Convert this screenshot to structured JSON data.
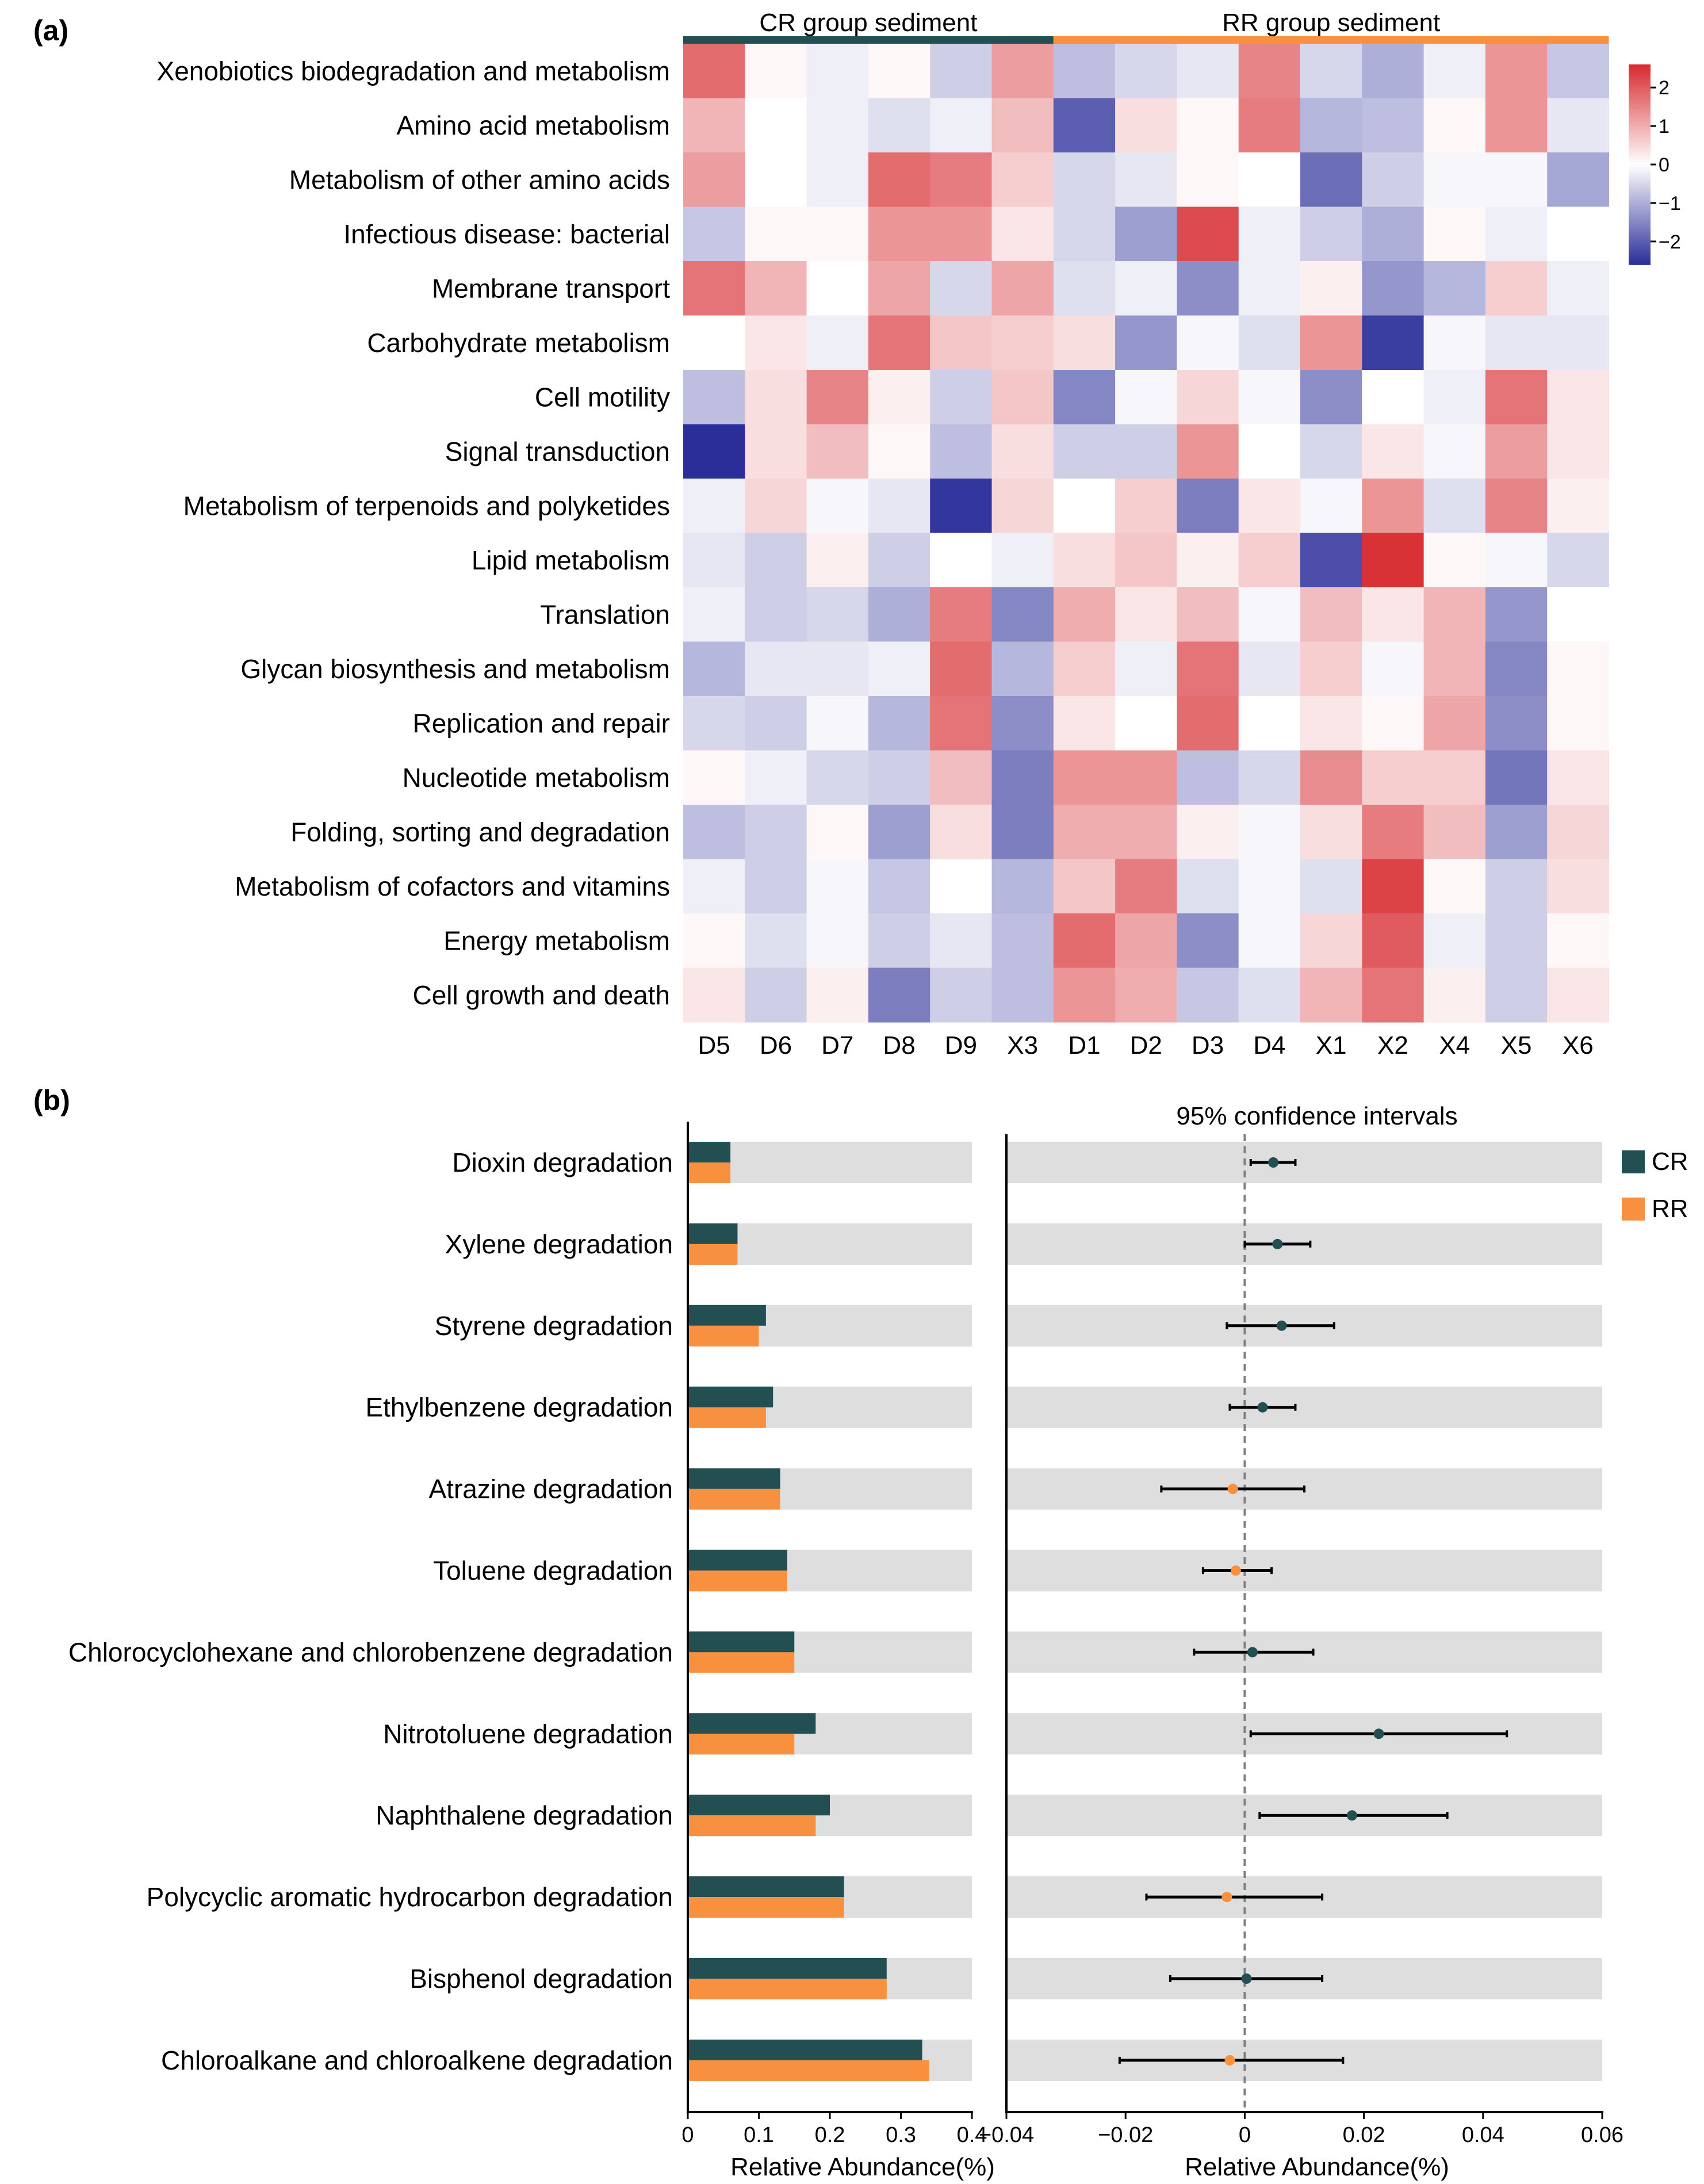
{
  "chart_data": [
    {
      "panel": "(a)",
      "type": "heatmap",
      "group_labels": [
        "CR group sediment",
        "RR group sediment"
      ],
      "group_colors": [
        "#234e52",
        "#f7913f"
      ],
      "group_column_counts": [
        6,
        9
      ],
      "columns": [
        "D5",
        "D6",
        "D7",
        "D8",
        "D9",
        "X3",
        "D1",
        "D2",
        "D3",
        "D4",
        "X1",
        "X2",
        "X4",
        "X5",
        "X6"
      ],
      "rows": [
        "Xenobiotics biodegradation and metabolism",
        "Amino acid metabolism",
        "Metabolism of other amino acids",
        "Infectious disease: bacterial",
        "Membrane transport",
        "Carbohydrate metabolism",
        "Cell motility",
        "Signal transduction",
        "Metabolism of terpenoids and polyketides",
        "Lipid metabolism",
        "Translation",
        "Glycan biosynthesis and metabolism",
        "Replication and repair",
        "Nucleotide metabolism",
        "Folding, sorting and degradation",
        "Metabolism of cofactors and vitamins",
        "Energy metabolism",
        "Cell growth and death"
      ],
      "values": [
        [
          1.8,
          0.1,
          -0.2,
          0.1,
          -0.6,
          1.2,
          -0.8,
          -0.5,
          -0.3,
          1.5,
          -0.5,
          -1.0,
          -0.2,
          1.3,
          -0.7
        ],
        [
          0.9,
          0.0,
          -0.2,
          -0.4,
          -0.2,
          0.8,
          -2.0,
          0.4,
          0.1,
          1.6,
          -0.9,
          -0.8,
          0.1,
          1.3,
          -0.3
        ],
        [
          1.2,
          0.0,
          -0.2,
          1.8,
          1.6,
          0.6,
          -0.5,
          -0.3,
          0.1,
          0.0,
          -1.8,
          -0.6,
          -0.1,
          -0.1,
          -1.1
        ],
        [
          -0.7,
          0.1,
          0.1,
          1.3,
          1.3,
          0.3,
          -0.5,
          -1.2,
          2.2,
          -0.2,
          -0.6,
          -1.0,
          0.1,
          -0.2,
          0.0
        ],
        [
          1.7,
          0.9,
          0.0,
          1.1,
          -0.5,
          1.1,
          -0.4,
          -0.2,
          -1.4,
          -0.2,
          0.2,
          -1.3,
          -0.9,
          0.6,
          -0.2
        ],
        [
          0.0,
          0.3,
          -0.2,
          1.7,
          0.7,
          0.6,
          0.4,
          -1.3,
          -0.1,
          -0.4,
          1.3,
          -2.4,
          -0.1,
          -0.3,
          -0.3
        ],
        [
          -0.8,
          0.4,
          1.5,
          0.2,
          -0.6,
          0.7,
          -1.5,
          -0.1,
          0.5,
          -0.1,
          -1.4,
          0.0,
          -0.2,
          1.7,
          0.3
        ],
        [
          -2.6,
          0.4,
          0.8,
          0.1,
          -0.8,
          0.4,
          -0.6,
          -0.6,
          1.3,
          0.0,
          -0.5,
          0.3,
          -0.1,
          1.2,
          0.3
        ],
        [
          -0.2,
          0.5,
          -0.1,
          -0.3,
          -2.5,
          0.5,
          0.0,
          0.6,
          -1.6,
          0.3,
          -0.1,
          1.3,
          -0.4,
          1.5,
          0.2
        ],
        [
          -0.3,
          -0.6,
          0.2,
          -0.6,
          0.0,
          -0.2,
          0.4,
          0.7,
          0.2,
          0.6,
          -2.2,
          2.5,
          0.1,
          -0.1,
          -0.5
        ],
        [
          -0.2,
          -0.6,
          -0.5,
          -1.0,
          1.6,
          -1.5,
          1.0,
          0.3,
          0.8,
          -0.1,
          0.8,
          0.3,
          0.9,
          -1.3,
          0.0
        ],
        [
          -0.9,
          -0.3,
          -0.3,
          -0.2,
          1.8,
          -0.9,
          0.6,
          -0.2,
          1.7,
          -0.3,
          0.6,
          -0.1,
          0.9,
          -1.5,
          0.1
        ],
        [
          -0.5,
          -0.6,
          -0.1,
          -0.9,
          1.7,
          -1.4,
          0.3,
          0.0,
          1.8,
          0.0,
          0.3,
          0.1,
          1.1,
          -1.4,
          0.1
        ],
        [
          0.1,
          -0.2,
          -0.5,
          -0.6,
          0.8,
          -1.6,
          1.3,
          1.3,
          -0.8,
          -0.5,
          1.4,
          0.6,
          0.6,
          -1.7,
          0.3
        ],
        [
          -0.8,
          -0.6,
          0.1,
          -1.2,
          0.4,
          -1.6,
          1.0,
          1.0,
          0.2,
          -0.1,
          0.4,
          1.6,
          0.8,
          -1.2,
          0.5
        ],
        [
          -0.2,
          -0.6,
          -0.1,
          -0.7,
          0.0,
          -0.9,
          0.7,
          1.6,
          -0.4,
          -0.1,
          -0.4,
          2.3,
          0.1,
          -0.6,
          0.4
        ],
        [
          0.1,
          -0.4,
          -0.1,
          -0.6,
          -0.3,
          -0.8,
          1.8,
          1.1,
          -1.4,
          -0.1,
          0.5,
          2.0,
          -0.2,
          -0.6,
          0.1
        ],
        [
          0.3,
          -0.6,
          0.2,
          -1.6,
          -0.6,
          -0.8,
          1.3,
          1.0,
          -0.7,
          -0.4,
          0.9,
          1.7,
          0.2,
          -0.6,
          0.3
        ]
      ],
      "colorbar": {
        "min": -2.6,
        "max": 2.6,
        "ticks": [
          2,
          1,
          0,
          -1,
          -2
        ],
        "tick_labels": [
          "2",
          "1",
          "0",
          "−1",
          "−2"
        ],
        "colors": [
          "#2b2e99",
          "#ffffff",
          "#d62a2f"
        ]
      }
    },
    {
      "panel": "(b)",
      "type": "bar",
      "orientation": "horizontal",
      "categories": [
        "Dioxin degradation",
        "Xylene degradation",
        "Styrene degradation",
        "Ethylbenzene degradation",
        "Atrazine degradation",
        "Toluene degradation",
        "Chlorocyclohexane and chlorobenzene degradation",
        "Nitrotoluene degradation",
        "Naphthalene degradation",
        "Polycyclic aromatic hydrocarbon degradation",
        "Bisphenol degradation",
        "Chloroalkane and chloroalkene degradation"
      ],
      "series": [
        {
          "name": "CR",
          "color": "#234e52",
          "values": [
            0.06,
            0.07,
            0.11,
            0.12,
            0.13,
            0.14,
            0.15,
            0.18,
            0.2,
            0.22,
            0.28,
            0.33
          ]
        },
        {
          "name": "RR",
          "color": "#f7913f",
          "values": [
            0.06,
            0.07,
            0.1,
            0.11,
            0.13,
            0.14,
            0.15,
            0.15,
            0.18,
            0.22,
            0.28,
            0.34
          ]
        }
      ],
      "xlim": [
        0,
        0.4
      ],
      "xticks": [
        0,
        0.1,
        0.2,
        0.3,
        0.4
      ],
      "xtick_labels": [
        "0",
        "0.1",
        "0.2",
        "0.3",
        "0.4"
      ],
      "xlabel": "Relative Abundance(%)"
    },
    {
      "panel": "(b)",
      "type": "scatter",
      "subtype": "confidence-interval",
      "title": "95% confidence intervals",
      "categories": [
        "Dioxin degradation",
        "Xylene degradation",
        "Styrene degradation",
        "Ethylbenzene degradation",
        "Atrazine degradation",
        "Toluene degradation",
        "Chlorocyclohexane and chlorobenzene degradation",
        "Nitrotoluene degradation",
        "Naphthalene degradation",
        "Polycyclic aromatic hydrocarbon degradation",
        "Bisphenol degradation",
        "Chloroalkane and chloroalkene degradation"
      ],
      "estimates": [
        0.0048,
        0.0055,
        0.0062,
        0.003,
        -0.002,
        -0.0015,
        0.0013,
        0.0225,
        0.018,
        -0.003,
        0.0003,
        -0.0025
      ],
      "lower": [
        0.001,
        0.0,
        -0.003,
        -0.0025,
        -0.014,
        -0.007,
        -0.0085,
        0.001,
        0.0025,
        -0.0165,
        -0.0125,
        -0.021
      ],
      "upper": [
        0.0085,
        0.011,
        0.015,
        0.0085,
        0.01,
        0.0045,
        0.0115,
        0.044,
        0.034,
        0.013,
        0.013,
        0.0165
      ],
      "point_groups": [
        "CR",
        "CR",
        "CR",
        "CR",
        "RR",
        "RR",
        "CR",
        "CR",
        "CR",
        "RR",
        "CR",
        "RR"
      ],
      "xlim": [
        -0.04,
        0.06
      ],
      "xticks": [
        -0.04,
        -0.02,
        0,
        0.02,
        0.04,
        0.06
      ],
      "xtick_labels": [
        "−0.04",
        "−0.02",
        "0",
        "0.02",
        "0.04",
        "0.06"
      ],
      "xlabel": "Relative Abundance(%)",
      "reference_line": 0,
      "legend": [
        {
          "name": "CR",
          "color": "#234e52"
        },
        {
          "name": "RR",
          "color": "#f7913f"
        }
      ],
      "legend_position": "top-right"
    }
  ]
}
